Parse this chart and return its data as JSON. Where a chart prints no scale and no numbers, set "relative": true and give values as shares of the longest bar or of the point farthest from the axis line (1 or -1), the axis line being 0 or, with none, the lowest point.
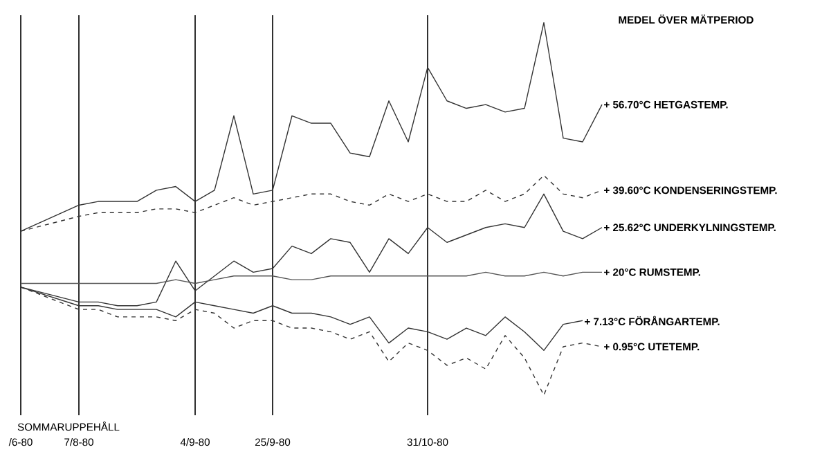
{
  "chart_data": {
    "type": "line",
    "relative": true,
    "title": "MEDEL ÖVER MÄTPERIOD",
    "grid": "x",
    "categories": [
      "/6-80",
      null,
      null,
      "7/8-80",
      null,
      null,
      null,
      null,
      null,
      "4/9-80",
      null,
      null,
      null,
      "25/9-80",
      null,
      null,
      null,
      null,
      null,
      null,
      null,
      "31/10-80",
      null,
      null,
      null,
      null,
      null,
      null,
      null,
      null,
      null
    ],
    "series": [
      {
        "name": "+ 56.70°C HETGASTEMP.",
        "color": "#333333",
        "line_style": "solid",
        "values": [
          0.44,
          null,
          null,
          0.51,
          0.52,
          0.52,
          0.52,
          0.55,
          0.56,
          0.52,
          0.55,
          0.75,
          0.54,
          0.55,
          0.75,
          0.73,
          0.73,
          0.65,
          0.64,
          0.79,
          0.68,
          0.88,
          0.79,
          0.77,
          0.78,
          0.76,
          0.77,
          1.0,
          0.69,
          0.68,
          0.78
        ]
      },
      {
        "name": "+ 39.60°C KONDENSERINGSTEMP.",
        "color": "#333333",
        "line_style": "dashed",
        "values": [
          0.44,
          null,
          null,
          0.48,
          0.49,
          0.49,
          0.49,
          0.5,
          0.5,
          0.49,
          0.51,
          0.53,
          0.51,
          0.52,
          0.53,
          0.54,
          0.54,
          0.52,
          0.51,
          0.54,
          0.52,
          0.54,
          0.52,
          0.52,
          0.55,
          0.52,
          0.54,
          0.59,
          0.54,
          0.53,
          0.55
        ]
      },
      {
        "name": "+ 25.62°C UNDERKYLNINGSTEMP.",
        "color": "#333333",
        "line_style": "solid",
        "values": [
          0.29,
          null,
          null,
          0.25,
          0.25,
          0.24,
          0.24,
          0.25,
          0.36,
          0.28,
          0.32,
          0.36,
          0.33,
          0.34,
          0.4,
          0.38,
          0.42,
          0.41,
          0.33,
          0.42,
          0.38,
          0.45,
          0.41,
          0.43,
          0.45,
          0.46,
          0.45,
          0.54,
          0.44,
          0.42,
          0.45
        ]
      },
      {
        "name": "+ 20°C RUMSTEMP.",
        "color": "#555555",
        "line_style": "solid",
        "values": [
          0.3,
          null,
          null,
          0.3,
          0.3,
          0.3,
          0.3,
          0.3,
          0.31,
          0.3,
          0.31,
          0.32,
          0.32,
          0.32,
          0.31,
          0.31,
          0.32,
          0.32,
          0.32,
          0.32,
          0.32,
          0.32,
          0.32,
          0.32,
          0.33,
          0.32,
          0.32,
          0.33,
          0.32,
          0.33,
          0.33
        ]
      },
      {
        "name": "+ 7.13°C FÖRÅNGARTEMP.",
        "color": "#333333",
        "line_style": "solid",
        "values": [
          0.29,
          null,
          null,
          0.24,
          0.24,
          0.23,
          0.23,
          0.23,
          0.21,
          0.25,
          0.24,
          0.23,
          0.22,
          0.24,
          0.22,
          0.22,
          0.21,
          0.19,
          0.21,
          0.14,
          0.18,
          0.17,
          0.15,
          0.18,
          0.16,
          0.21,
          0.17,
          0.12,
          0.19,
          0.2,
          null
        ]
      },
      {
        "name": "+ 0.95°C UTETEMP.",
        "color": "#333333",
        "line_style": "dashed",
        "values": [
          0.29,
          null,
          null,
          0.23,
          0.23,
          0.21,
          0.21,
          0.21,
          0.2,
          0.23,
          0.22,
          0.18,
          0.2,
          0.2,
          0.18,
          0.18,
          0.17,
          0.15,
          0.17,
          0.09,
          0.14,
          0.12,
          0.08,
          0.1,
          0.07,
          0.16,
          0.1,
          0.0,
          0.13,
          0.14,
          0.13
        ]
      }
    ],
    "annotations": [
      "SOMMARUPPEHÅLL"
    ]
  }
}
